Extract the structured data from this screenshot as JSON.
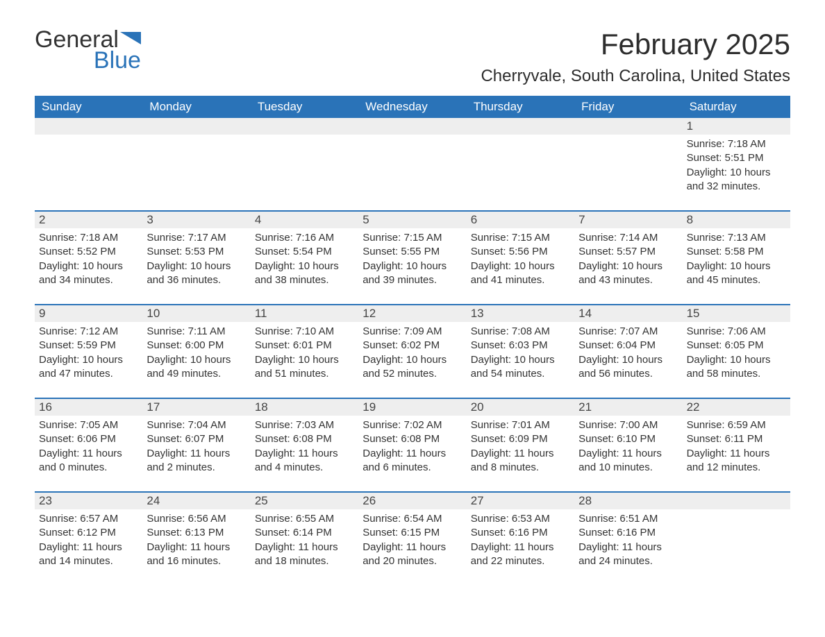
{
  "logo": {
    "text1": "General",
    "text2": "Blue",
    "icon_color": "#2a73b8"
  },
  "title": "February 2025",
  "location": "Cherryvale, South Carolina, United States",
  "colors": {
    "header_bg": "#2a73b8",
    "header_text": "#ffffff",
    "week_border": "#2a73b8",
    "daynum_bg": "#eeeeee",
    "body_text": "#333333",
    "background": "#ffffff"
  },
  "typography": {
    "title_fontsize": 42,
    "location_fontsize": 24,
    "dayhead_fontsize": 17,
    "cell_fontsize": 15,
    "logo_fontsize": 34
  },
  "day_headers": [
    "Sunday",
    "Monday",
    "Tuesday",
    "Wednesday",
    "Thursday",
    "Friday",
    "Saturday"
  ],
  "weeks": [
    [
      {
        "day": "",
        "sunrise": "",
        "sunset": "",
        "daylight": ""
      },
      {
        "day": "",
        "sunrise": "",
        "sunset": "",
        "daylight": ""
      },
      {
        "day": "",
        "sunrise": "",
        "sunset": "",
        "daylight": ""
      },
      {
        "day": "",
        "sunrise": "",
        "sunset": "",
        "daylight": ""
      },
      {
        "day": "",
        "sunrise": "",
        "sunset": "",
        "daylight": ""
      },
      {
        "day": "",
        "sunrise": "",
        "sunset": "",
        "daylight": ""
      },
      {
        "day": "1",
        "sunrise": "Sunrise: 7:18 AM",
        "sunset": "Sunset: 5:51 PM",
        "daylight": "Daylight: 10 hours and 32 minutes."
      }
    ],
    [
      {
        "day": "2",
        "sunrise": "Sunrise: 7:18 AM",
        "sunset": "Sunset: 5:52 PM",
        "daylight": "Daylight: 10 hours and 34 minutes."
      },
      {
        "day": "3",
        "sunrise": "Sunrise: 7:17 AM",
        "sunset": "Sunset: 5:53 PM",
        "daylight": "Daylight: 10 hours and 36 minutes."
      },
      {
        "day": "4",
        "sunrise": "Sunrise: 7:16 AM",
        "sunset": "Sunset: 5:54 PM",
        "daylight": "Daylight: 10 hours and 38 minutes."
      },
      {
        "day": "5",
        "sunrise": "Sunrise: 7:15 AM",
        "sunset": "Sunset: 5:55 PM",
        "daylight": "Daylight: 10 hours and 39 minutes."
      },
      {
        "day": "6",
        "sunrise": "Sunrise: 7:15 AM",
        "sunset": "Sunset: 5:56 PM",
        "daylight": "Daylight: 10 hours and 41 minutes."
      },
      {
        "day": "7",
        "sunrise": "Sunrise: 7:14 AM",
        "sunset": "Sunset: 5:57 PM",
        "daylight": "Daylight: 10 hours and 43 minutes."
      },
      {
        "day": "8",
        "sunrise": "Sunrise: 7:13 AM",
        "sunset": "Sunset: 5:58 PM",
        "daylight": "Daylight: 10 hours and 45 minutes."
      }
    ],
    [
      {
        "day": "9",
        "sunrise": "Sunrise: 7:12 AM",
        "sunset": "Sunset: 5:59 PM",
        "daylight": "Daylight: 10 hours and 47 minutes."
      },
      {
        "day": "10",
        "sunrise": "Sunrise: 7:11 AM",
        "sunset": "Sunset: 6:00 PM",
        "daylight": "Daylight: 10 hours and 49 minutes."
      },
      {
        "day": "11",
        "sunrise": "Sunrise: 7:10 AM",
        "sunset": "Sunset: 6:01 PM",
        "daylight": "Daylight: 10 hours and 51 minutes."
      },
      {
        "day": "12",
        "sunrise": "Sunrise: 7:09 AM",
        "sunset": "Sunset: 6:02 PM",
        "daylight": "Daylight: 10 hours and 52 minutes."
      },
      {
        "day": "13",
        "sunrise": "Sunrise: 7:08 AM",
        "sunset": "Sunset: 6:03 PM",
        "daylight": "Daylight: 10 hours and 54 minutes."
      },
      {
        "day": "14",
        "sunrise": "Sunrise: 7:07 AM",
        "sunset": "Sunset: 6:04 PM",
        "daylight": "Daylight: 10 hours and 56 minutes."
      },
      {
        "day": "15",
        "sunrise": "Sunrise: 7:06 AM",
        "sunset": "Sunset: 6:05 PM",
        "daylight": "Daylight: 10 hours and 58 minutes."
      }
    ],
    [
      {
        "day": "16",
        "sunrise": "Sunrise: 7:05 AM",
        "sunset": "Sunset: 6:06 PM",
        "daylight": "Daylight: 11 hours and 0 minutes."
      },
      {
        "day": "17",
        "sunrise": "Sunrise: 7:04 AM",
        "sunset": "Sunset: 6:07 PM",
        "daylight": "Daylight: 11 hours and 2 minutes."
      },
      {
        "day": "18",
        "sunrise": "Sunrise: 7:03 AM",
        "sunset": "Sunset: 6:08 PM",
        "daylight": "Daylight: 11 hours and 4 minutes."
      },
      {
        "day": "19",
        "sunrise": "Sunrise: 7:02 AM",
        "sunset": "Sunset: 6:08 PM",
        "daylight": "Daylight: 11 hours and 6 minutes."
      },
      {
        "day": "20",
        "sunrise": "Sunrise: 7:01 AM",
        "sunset": "Sunset: 6:09 PM",
        "daylight": "Daylight: 11 hours and 8 minutes."
      },
      {
        "day": "21",
        "sunrise": "Sunrise: 7:00 AM",
        "sunset": "Sunset: 6:10 PM",
        "daylight": "Daylight: 11 hours and 10 minutes."
      },
      {
        "day": "22",
        "sunrise": "Sunrise: 6:59 AM",
        "sunset": "Sunset: 6:11 PM",
        "daylight": "Daylight: 11 hours and 12 minutes."
      }
    ],
    [
      {
        "day": "23",
        "sunrise": "Sunrise: 6:57 AM",
        "sunset": "Sunset: 6:12 PM",
        "daylight": "Daylight: 11 hours and 14 minutes."
      },
      {
        "day": "24",
        "sunrise": "Sunrise: 6:56 AM",
        "sunset": "Sunset: 6:13 PM",
        "daylight": "Daylight: 11 hours and 16 minutes."
      },
      {
        "day": "25",
        "sunrise": "Sunrise: 6:55 AM",
        "sunset": "Sunset: 6:14 PM",
        "daylight": "Daylight: 11 hours and 18 minutes."
      },
      {
        "day": "26",
        "sunrise": "Sunrise: 6:54 AM",
        "sunset": "Sunset: 6:15 PM",
        "daylight": "Daylight: 11 hours and 20 minutes."
      },
      {
        "day": "27",
        "sunrise": "Sunrise: 6:53 AM",
        "sunset": "Sunset: 6:16 PM",
        "daylight": "Daylight: 11 hours and 22 minutes."
      },
      {
        "day": "28",
        "sunrise": "Sunrise: 6:51 AM",
        "sunset": "Sunset: 6:16 PM",
        "daylight": "Daylight: 11 hours and 24 minutes."
      },
      {
        "day": "",
        "sunrise": "",
        "sunset": "",
        "daylight": ""
      }
    ]
  ]
}
